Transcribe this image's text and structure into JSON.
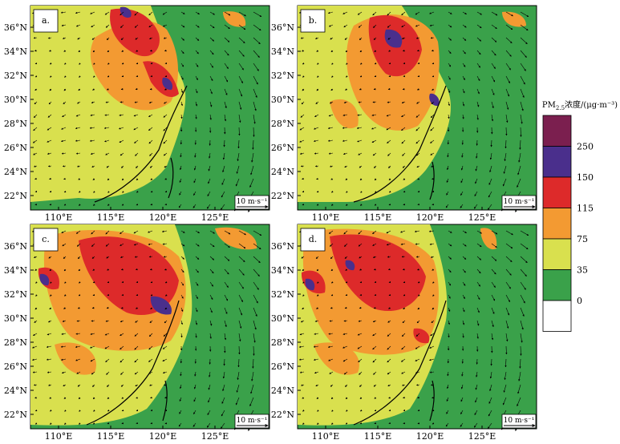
{
  "chart_data": [
    {
      "panel_label": "a.",
      "type": "heatmap",
      "vector_overlay": "wind",
      "reference_vector": "10 m·s⁻¹"
    },
    {
      "panel_label": "b.",
      "type": "heatmap",
      "vector_overlay": "wind",
      "reference_vector": "10 m·s⁻¹"
    },
    {
      "panel_label": "c.",
      "type": "heatmap",
      "vector_overlay": "wind",
      "reference_vector": "10 m·s⁻¹"
    },
    {
      "panel_label": "d.",
      "type": "heatmap",
      "vector_overlay": "wind",
      "reference_vector": "10 m·s⁻¹"
    }
  ],
  "axes": {
    "x_ticks": [
      "110°E",
      "115°E",
      "120°E",
      "125°E"
    ],
    "y_ticks": [
      "36°N",
      "34°N",
      "32°N",
      "30°N",
      "28°N",
      "26°N",
      "24°N",
      "22°N"
    ]
  },
  "colorbar": {
    "title_main": "PM",
    "title_sub": "2.5",
    "title_rest": "浓度/(μg·m⁻³)",
    "levels": [
      "250",
      "150",
      "115",
      "75",
      "35",
      "0"
    ],
    "colors": [
      "#7b1f4f",
      "#4a2f8c",
      "#dd2a2a",
      "#f39a32",
      "#d9e04e",
      "#3aa14a",
      "#ffffff"
    ]
  },
  "colors": {
    "land": "#d9e04e",
    "sea": "#3aa14a",
    "orange": "#f39a32",
    "red": "#dd2a2a",
    "purple": "#4a2f8c"
  }
}
